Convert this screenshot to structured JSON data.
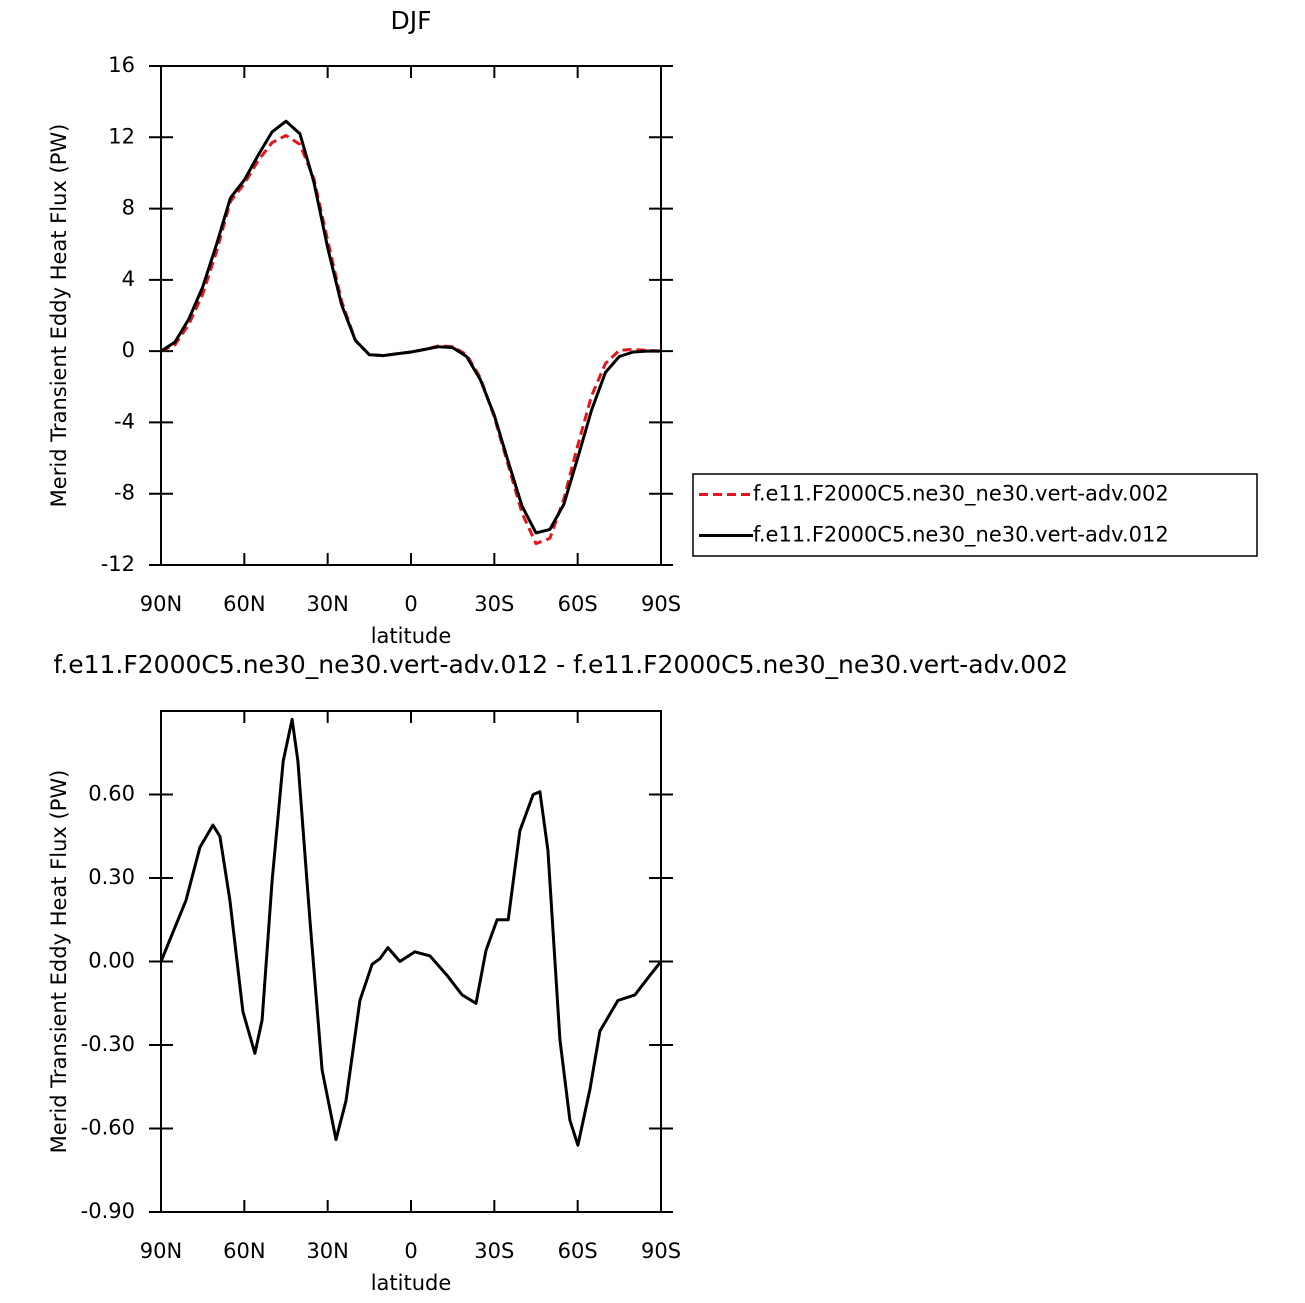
{
  "chart_data": [
    {
      "type": "line",
      "title": "DJF",
      "xlabel": "latitude",
      "ylabel": "Merid Transient Eddy Heat Flux (PW)",
      "x": [
        90,
        85,
        80,
        75,
        70,
        65,
        60,
        55,
        50,
        45,
        40,
        35,
        30,
        25,
        20,
        15,
        10,
        5,
        0,
        -5,
        -10,
        -15,
        -20,
        -25,
        -30,
        -35,
        -40,
        -45,
        -50,
        -55,
        -60,
        -65,
        -70,
        -75,
        -80,
        -85,
        -90
      ],
      "series": [
        {
          "name": "f.e11.F2000C5.ne30_ne30.vert-adv.002",
          "color": "#e8141b",
          "linestyle": "dashed",
          "values": [
            0,
            0.35,
            1.5,
            3.2,
            5.6,
            8.4,
            9.4,
            10.7,
            11.7,
            12.1,
            11.6,
            9.7,
            6.2,
            2.8,
            0.6,
            -0.2,
            -0.25,
            -0.15,
            -0.05,
            0.1,
            0.3,
            0.25,
            -0.2,
            -1.5,
            -3.7,
            -6.4,
            -9.1,
            -10.8,
            -10.5,
            -8.3,
            -5.3,
            -2.5,
            -0.7,
            0.05,
            0.1,
            0.05,
            0
          ]
        },
        {
          "name": "f.e11.F2000C5.ne30_ne30.vert-adv.012",
          "color": "#000000",
          "linestyle": "solid",
          "values": [
            0,
            0.5,
            1.8,
            3.6,
            6.0,
            8.6,
            9.6,
            11.0,
            12.3,
            12.9,
            12.2,
            9.5,
            5.8,
            2.6,
            0.6,
            -0.2,
            -0.25,
            -0.15,
            -0.05,
            0.1,
            0.25,
            0.2,
            -0.3,
            -1.6,
            -3.6,
            -6.2,
            -8.7,
            -10.2,
            -10.0,
            -8.6,
            -6.0,
            -3.3,
            -1.2,
            -0.3,
            -0.05,
            0,
            0
          ]
        }
      ],
      "xlim": [
        90,
        -90
      ],
      "xticks": [
        {
          "value": 90,
          "label": "90N"
        },
        {
          "value": 60,
          "label": "60N"
        },
        {
          "value": 30,
          "label": "30N"
        },
        0,
        {
          "value": -30,
          "label": "30S"
        },
        {
          "value": -60,
          "label": "60S"
        },
        {
          "value": -90,
          "label": "90S"
        }
      ],
      "ylim": [
        -12,
        16
      ],
      "yticks": [
        -12,
        -8,
        -4,
        0,
        4,
        8,
        12,
        16
      ],
      "legend": "right"
    },
    {
      "type": "line",
      "title": "f.e11.F2000C5.ne30_ne30.vert-adv.012 - f.e11.F2000C5.ne30_ne30.vert-adv.002",
      "xlabel": "latitude",
      "ylabel": "Merid Transient Eddy Heat Flux (PW)",
      "x": [
        90,
        81,
        76,
        71.3,
        68.8,
        65.2,
        60.5,
        56.2,
        53.6,
        50,
        46,
        42.8,
        40.7,
        36.4,
        32,
        27,
        23.4,
        18.4,
        14,
        11.2,
        8.3,
        4,
        -1.4,
        -6.8,
        -13,
        -18.4,
        -23.4,
        -27,
        -31,
        -35,
        -39.2,
        -44,
        -46.4,
        -49.3,
        -53.6,
        -57.2,
        -60.1,
        -64.4,
        -68,
        -74.5,
        -80.6,
        -86,
        -90
      ],
      "values": [
        0,
        0.22,
        0.41,
        0.49,
        0.45,
        0.22,
        -0.18,
        -0.33,
        -0.21,
        0.29,
        0.72,
        0.87,
        0.72,
        0.15,
        -0.39,
        -0.64,
        -0.5,
        -0.14,
        -0.01,
        0.01,
        0.05,
        0,
        0.035,
        0.02,
        -0.05,
        -0.12,
        -0.15,
        0.04,
        0.15,
        0.15,
        0.47,
        0.6,
        0.61,
        0.4,
        -0.28,
        -0.57,
        -0.66,
        -0.46,
        -0.25,
        -0.14,
        -0.12,
        -0.05,
        0
      ],
      "color": "#000000",
      "xlim": [
        90,
        -90
      ],
      "xticks": [
        {
          "value": 90,
          "label": "90N"
        },
        {
          "value": 60,
          "label": "60N"
        },
        {
          "value": 30,
          "label": "30N"
        },
        0,
        {
          "value": -30,
          "label": "30S"
        },
        {
          "value": -60,
          "label": "60S"
        },
        {
          "value": -90,
          "label": "90S"
        }
      ],
      "ylim": [
        -0.9,
        0.9
      ],
      "yticks": [
        {
          "value": -0.9,
          "label": "-0.90"
        },
        {
          "value": -0.6,
          "label": "-0.60"
        },
        {
          "value": -0.3,
          "label": "-0.30"
        },
        {
          "value": 0,
          "label": "0.00"
        },
        {
          "value": 0.3,
          "label": "0.30"
        },
        {
          "value": 0.6,
          "label": "0.60"
        }
      ]
    }
  ]
}
